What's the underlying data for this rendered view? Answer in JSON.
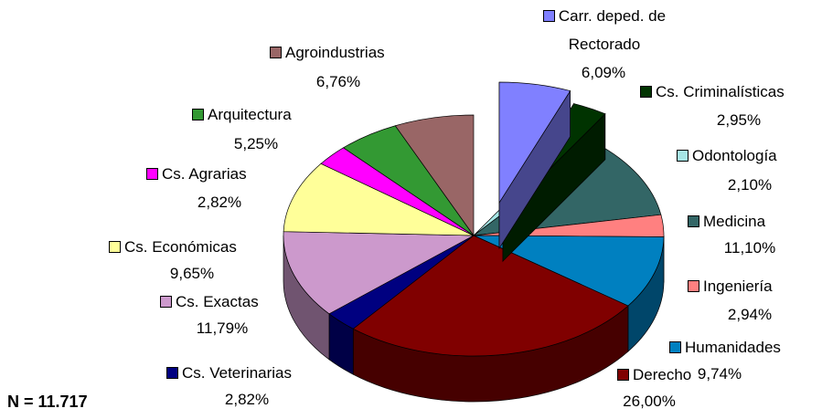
{
  "chart_data": {
    "type": "pie",
    "categories": [
      "Carr. deped. de Rectorado",
      "Cs. Criminalísticas",
      "Odontología",
      "Medicina",
      "Ingeniería",
      "Humanidades",
      "Derecho",
      "Cs. Veterinarias",
      "Cs. Exactas",
      "Cs. Económicas",
      "Cs. Agrarias",
      "Arquitectura",
      "Agroindustrias"
    ],
    "values": [
      6.09,
      2.95,
      2.1,
      11.1,
      2.94,
      9.74,
      26.0,
      2.82,
      11.79,
      9.65,
      2.82,
      5.25,
      6.76
    ],
    "value_labels": [
      "6,09%",
      "2,95%",
      "2,10%",
      "11,10%",
      "2,94%",
      "9,74%",
      "26,00%",
      "2,82%",
      "11,79%",
      "9,65%",
      "2,82%",
      "5,25%",
      "6,76%"
    ],
    "colors": [
      "#8080ff",
      "#003300",
      "#a6e6e6",
      "#336666",
      "#ff8080",
      "#0080c0",
      "#800000",
      "#000080",
      "#cc99cc",
      "#ffff99",
      "#ff00ff",
      "#339933",
      "#996666"
    ],
    "annotation": "N = 11.717"
  }
}
